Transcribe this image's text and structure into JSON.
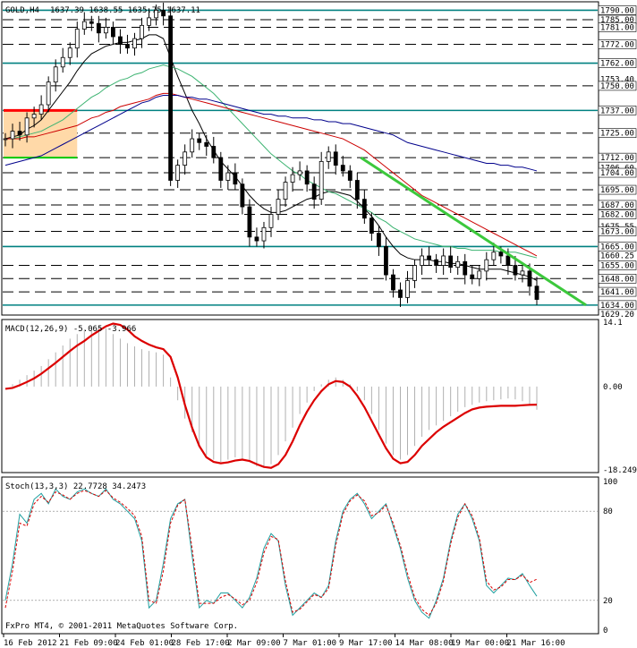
{
  "chart_data": [
    {
      "type": "candlestick",
      "title": "GOLD,H4",
      "ohlc_header": "1637.39 1638.55 1635.75 1637.11",
      "ylim": [
        1629.2,
        1794.0
      ],
      "price_axis_labels": [
        "1790.00",
        "1785.00",
        "1781.00",
        "1772.00",
        "1762.00",
        "1753.40",
        "1750.00",
        "1737.00",
        "1725.00",
        "1712.00",
        "1706.60",
        "1704.00",
        "1695.00",
        "1687.00",
        "1682.00",
        "1675.55",
        "1673.00",
        "1665.00",
        "1660.25",
        "1655.00",
        "1648.00",
        "1641.00",
        "1634.00",
        "1629.20"
      ],
      "horizontal_levels": [
        1790,
        1785,
        1781,
        1772,
        1762,
        1750,
        1737,
        1725,
        1712,
        1704,
        1695,
        1687,
        1682,
        1673,
        1665,
        1655,
        1648,
        1641,
        1634
      ],
      "x_tick_labels": [
        "16 Feb 2012",
        "21 Feb 09:00",
        "24 Feb 01:00",
        "28 Feb 17:00",
        "2 Mar 09:00",
        "7 Mar 01:00",
        "9 Mar 17:00",
        "14 Mar 08:00",
        "19 Mar 00:00",
        "21 Mar 16:00"
      ],
      "series": [
        {
          "kind": "close",
          "values": [
            1722,
            1726,
            1724,
            1733,
            1735,
            1740,
            1752,
            1760,
            1765,
            1770,
            1780,
            1784,
            1783,
            1778,
            1781,
            1776,
            1772,
            1770,
            1775,
            1782,
            1786,
            1790,
            1787,
            1700,
            1708,
            1715,
            1722,
            1720,
            1718,
            1712,
            1700,
            1704,
            1698,
            1686,
            1670,
            1668,
            1675,
            1682,
            1690,
            1699,
            1703,
            1705,
            1698,
            1690,
            1710,
            1715,
            1708,
            1705,
            1700,
            1690,
            1680,
            1672,
            1665,
            1650,
            1642,
            1638,
            1647,
            1655,
            1660,
            1658,
            1655,
            1660,
            1654,
            1657,
            1650,
            1648,
            1652,
            1658,
            1662,
            1660,
            1655,
            1650,
            1652,
            1644,
            1637
          ]
        },
        {
          "kind": "ma_black",
          "values": [
            1722,
            1723,
            1724,
            1727,
            1729,
            1732,
            1737,
            1742,
            1747,
            1752,
            1758,
            1763,
            1767,
            1769,
            1771,
            1772,
            1773,
            1773,
            1774,
            1775,
            1777,
            1777,
            1775,
            1765,
            1755,
            1746,
            1737,
            1730,
            1722,
            1716,
            1710,
            1706,
            1702,
            1697,
            1692,
            1688,
            1685,
            1683,
            1683,
            1684,
            1686,
            1688,
            1690,
            1691,
            1693,
            1694,
            1694,
            1693,
            1692,
            1689,
            1685,
            1681,
            1676,
            1670,
            1665,
            1661,
            1659,
            1658,
            1658,
            1658,
            1657,
            1657,
            1656,
            1656,
            1655,
            1654,
            1653,
            1653,
            1653,
            1653,
            1652,
            1651,
            1650,
            1649,
            1647
          ]
        },
        {
          "kind": "ma_green",
          "values": [
            1722,
            1722,
            1723,
            1724,
            1725,
            1726,
            1728,
            1730,
            1732,
            1735,
            1738,
            1741,
            1744,
            1746,
            1749,
            1751,
            1753,
            1754,
            1756,
            1757,
            1759,
            1760,
            1761,
            1760,
            1759,
            1757,
            1755,
            1752,
            1749,
            1746,
            1742,
            1738,
            1734,
            1730,
            1726,
            1722,
            1718,
            1714,
            1711,
            1708,
            1705,
            1703,
            1700,
            1698,
            1696,
            1694,
            1693,
            1691,
            1689,
            1687,
            1685,
            1683,
            1680,
            1678,
            1675,
            1673,
            1671,
            1669,
            1668,
            1667,
            1666,
            1665,
            1665,
            1664,
            1664,
            1663,
            1663,
            1663,
            1663,
            1662,
            1662,
            1662,
            1661,
            1660,
            1659
          ]
        },
        {
          "kind": "ma_red",
          "values": [
            1722,
            1722,
            1722,
            1723,
            1723,
            1724,
            1725,
            1726,
            1727,
            1728,
            1729,
            1731,
            1733,
            1734,
            1736,
            1737,
            1739,
            1740,
            1741,
            1742,
            1743,
            1745,
            1746,
            1746,
            1745,
            1744,
            1743,
            1742,
            1741,
            1740,
            1739,
            1738,
            1737,
            1736,
            1735,
            1734,
            1733,
            1732,
            1731,
            1730,
            1729,
            1728,
            1727,
            1726,
            1725,
            1724,
            1723,
            1722,
            1720,
            1718,
            1716,
            1713,
            1710,
            1707,
            1704,
            1701,
            1698,
            1695,
            1692,
            1690,
            1688,
            1686,
            1684,
            1682,
            1680,
            1678,
            1676,
            1674,
            1672,
            1670,
            1668,
            1666,
            1664,
            1662,
            1660
          ]
        },
        {
          "kind": "ma_blue",
          "values": [
            1708,
            1709,
            1710,
            1711,
            1712,
            1713,
            1715,
            1717,
            1719,
            1721,
            1723,
            1725,
            1727,
            1729,
            1731,
            1733,
            1735,
            1737,
            1739,
            1741,
            1742,
            1744,
            1745,
            1745,
            1745,
            1744,
            1744,
            1743,
            1743,
            1742,
            1741,
            1740,
            1739,
            1738,
            1737,
            1736,
            1735,
            1735,
            1734,
            1734,
            1733,
            1733,
            1733,
            1732,
            1732,
            1731,
            1731,
            1730,
            1730,
            1729,
            1728,
            1727,
            1726,
            1725,
            1724,
            1722,
            1720,
            1719,
            1718,
            1717,
            1716,
            1715,
            1714,
            1713,
            1712,
            1711,
            1710,
            1709,
            1709,
            1708,
            1708,
            1707,
            1707,
            1706,
            1705
          ]
        }
      ]
    },
    {
      "type": "line",
      "title": "MACD(12,26,9) -5.065 -3.966",
      "ylim": [
        -18.249,
        14.1
      ],
      "y_tick_labels": [
        "14.1",
        "0.00",
        "-18.249"
      ],
      "series": [
        {
          "kind": "histogram",
          "values": [
            0,
            0.5,
            1.5,
            2.5,
            3.5,
            4.5,
            6,
            7.5,
            9,
            10.5,
            11.5,
            12.5,
            13,
            13.2,
            12.8,
            11.5,
            10.5,
            9.5,
            8.8,
            8.2,
            7.8,
            7.5,
            7,
            2,
            -3,
            -7,
            -10,
            -13,
            -15,
            -16,
            -16.5,
            -16,
            -15.5,
            -15.8,
            -16.5,
            -17.5,
            -17.8,
            -17,
            -15,
            -12,
            -9,
            -6,
            -3.5,
            -1,
            0.5,
            1.5,
            2,
            1.5,
            0.5,
            -1,
            -3,
            -6,
            -9.5,
            -12.5,
            -15,
            -16,
            -15,
            -13,
            -11,
            -9.5,
            -8.5,
            -7.5,
            -6.5,
            -5.5,
            -4.5,
            -4,
            -3.5,
            -3.2,
            -3,
            -2.8,
            -2.6,
            -2.8,
            -3.2,
            -4.2,
            -5.065
          ]
        },
        {
          "kind": "signal",
          "values": [
            -0.5,
            -0.3,
            0.3,
            1,
            1.8,
            2.8,
            4,
            5.2,
            6.5,
            7.8,
            9,
            10,
            11.2,
            12.2,
            13.2,
            13.8,
            13.5,
            12.5,
            11,
            10,
            9.2,
            8.6,
            8.2,
            6.5,
            2,
            -4,
            -9,
            -13,
            -15.5,
            -16.5,
            -16.8,
            -16.6,
            -16.2,
            -16,
            -16.3,
            -17,
            -17.6,
            -17.8,
            -17,
            -15,
            -12,
            -8.5,
            -5.5,
            -3,
            -1,
            0.5,
            1.2,
            1,
            0,
            -2,
            -4.5,
            -7.5,
            -10.5,
            -13.5,
            -15.8,
            -16.8,
            -16.5,
            -15,
            -13,
            -11.5,
            -10,
            -8.8,
            -7.8,
            -6.8,
            -5.8,
            -5,
            -4.6,
            -4.4,
            -4.3,
            -4.2,
            -4.2,
            -4.2,
            -4.1,
            -4,
            -3.966
          ]
        }
      ]
    },
    {
      "type": "line",
      "title": "Stoch(13,3,3) 22.7728 34.2473",
      "ylim": [
        0,
        100
      ],
      "y_tick_labels": [
        "100",
        "80",
        "20",
        "0"
      ],
      "series": [
        {
          "kind": "main",
          "values": [
            20,
            45,
            78,
            72,
            88,
            92,
            85,
            95,
            90,
            88,
            93,
            95,
            92,
            90,
            95,
            88,
            85,
            80,
            75,
            60,
            15,
            20,
            45,
            75,
            85,
            88,
            50,
            15,
            20,
            18,
            25,
            25,
            20,
            15,
            22,
            35,
            55,
            65,
            60,
            30,
            10,
            15,
            20,
            25,
            22,
            30,
            60,
            80,
            88,
            92,
            85,
            75,
            80,
            85,
            70,
            55,
            35,
            20,
            12,
            8,
            20,
            35,
            60,
            78,
            85,
            75,
            60,
            30,
            25,
            30,
            35,
            34,
            38,
            30,
            22.7728
          ]
        },
        {
          "kind": "signal",
          "values": [
            15,
            40,
            72,
            70,
            85,
            90,
            86,
            93,
            91,
            88,
            92,
            94,
            92,
            90,
            94,
            89,
            86,
            82,
            77,
            63,
            20,
            18,
            40,
            72,
            84,
            88,
            55,
            18,
            18,
            18,
            22,
            24,
            21,
            17,
            20,
            32,
            52,
            63,
            61,
            33,
            12,
            14,
            19,
            24,
            22,
            28,
            57,
            78,
            87,
            91,
            87,
            77,
            79,
            84,
            72,
            57,
            38,
            22,
            14,
            10,
            18,
            33,
            58,
            76,
            85,
            77,
            62,
            33,
            27,
            29,
            34,
            34,
            37,
            32,
            34.2473
          ]
        }
      ]
    }
  ],
  "footer": {
    "text": "FxPro MT4, © 2001-2011 MetaQuotes Software Corp."
  },
  "colors": {
    "background": "#ffffff",
    "grid_dash": "#000000",
    "level_line": "#008080",
    "candle": "#000000",
    "ma_black": "#000000",
    "ma_green": "#3cb371",
    "ma_red": "#cc0000",
    "ma_blue": "#00008b",
    "trend_line": "#3cc83c",
    "macd_signal": "#dc0000",
    "macd_hist": "#b0b0b0",
    "stoch_main": "#20a0a0",
    "stoch_signal": "#dc0000",
    "rect_fill": "#ffd9a8",
    "rect_red": "#ff0000",
    "rect_green": "#00c800"
  }
}
